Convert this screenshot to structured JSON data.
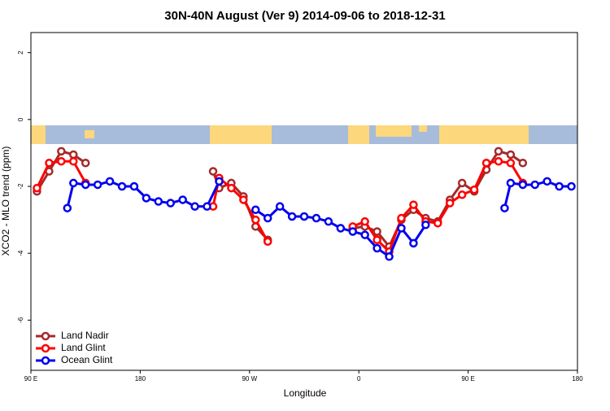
{
  "chart_data": {
    "type": "line",
    "title": "30N-40N August (Ver 9)   2014-09-06 to 2018-12-31",
    "xlabel": "Longitude",
    "ylabel": "XCO2 - MLO trend (ppm)",
    "xlim": [
      90,
      540
    ],
    "xticks": [
      {
        "value": 90,
        "label": "90 E"
      },
      {
        "value": 180,
        "label": "180"
      },
      {
        "value": 270,
        "label": "90 W"
      },
      {
        "value": 360,
        "label": "0"
      },
      {
        "value": 450,
        "label": "90 E"
      },
      {
        "value": 540,
        "label": "180"
      }
    ],
    "ylim": [
      -7.5,
      2.6
    ],
    "yticks": [
      2,
      0,
      -2,
      -4,
      -6
    ],
    "legend": "bottom-left",
    "series": [
      {
        "name": "Land Nadir",
        "color": "#a52a2a",
        "x": [
          95,
          105,
          115,
          125,
          135,
          null,
          240,
          245,
          255,
          265,
          275,
          285,
          null,
          355,
          365,
          375,
          385,
          395,
          405,
          415,
          425,
          435,
          445,
          455,
          465,
          475,
          485,
          495
        ],
        "values": [
          -2.15,
          -1.55,
          -0.95,
          -1.05,
          -1.3,
          null,
          -1.55,
          -2.05,
          -1.9,
          -2.3,
          -3.2,
          -3.6,
          null,
          -3.25,
          -3.2,
          -3.35,
          -3.8,
          -3.0,
          -2.7,
          -2.95,
          -3.05,
          -2.4,
          -1.9,
          -2.15,
          -1.5,
          -0.95,
          -1.05,
          -1.3
        ]
      },
      {
        "name": "Land Glint",
        "color": "#ff0000",
        "x": [
          95,
          105,
          115,
          125,
          135,
          null,
          240,
          245,
          255,
          265,
          275,
          285,
          null,
          355,
          365,
          375,
          385,
          395,
          405,
          415,
          425,
          435,
          445,
          455,
          465,
          475,
          485,
          495
        ],
        "values": [
          -2.05,
          -1.3,
          -1.25,
          -1.25,
          -1.9,
          null,
          -2.6,
          -1.75,
          -2.05,
          -2.4,
          -3.0,
          -3.65,
          null,
          -3.2,
          -3.05,
          -3.6,
          -3.95,
          -2.95,
          -2.55,
          -3.05,
          -3.1,
          -2.5,
          -2.25,
          -2.1,
          -1.3,
          -1.25,
          -1.3,
          -1.9
        ]
      },
      {
        "name": "Ocean Glint",
        "color": "#0000ee",
        "x": [
          120,
          125,
          135,
          145,
          155,
          165,
          175,
          185,
          195,
          205,
          215,
          225,
          235,
          245,
          null,
          275,
          285,
          295,
          305,
          315,
          325,
          335,
          345,
          355,
          365,
          375,
          385,
          395,
          405,
          415,
          null,
          480,
          485,
          495,
          505,
          515,
          525,
          535
        ],
        "values": [
          -2.65,
          -1.9,
          -1.95,
          -1.95,
          -1.85,
          -2.0,
          -2.0,
          -2.35,
          -2.45,
          -2.5,
          -2.4,
          -2.6,
          -2.6,
          -1.85,
          null,
          -2.7,
          -2.95,
          -2.6,
          -2.9,
          -2.9,
          -2.95,
          -3.05,
          -3.25,
          -3.35,
          -3.45,
          -3.85,
          -4.1,
          -3.25,
          -3.7,
          -3.15,
          null,
          -2.65,
          -1.9,
          -1.95,
          -1.95,
          -1.85,
          -2.0,
          -2.0
        ]
      }
    ]
  }
}
